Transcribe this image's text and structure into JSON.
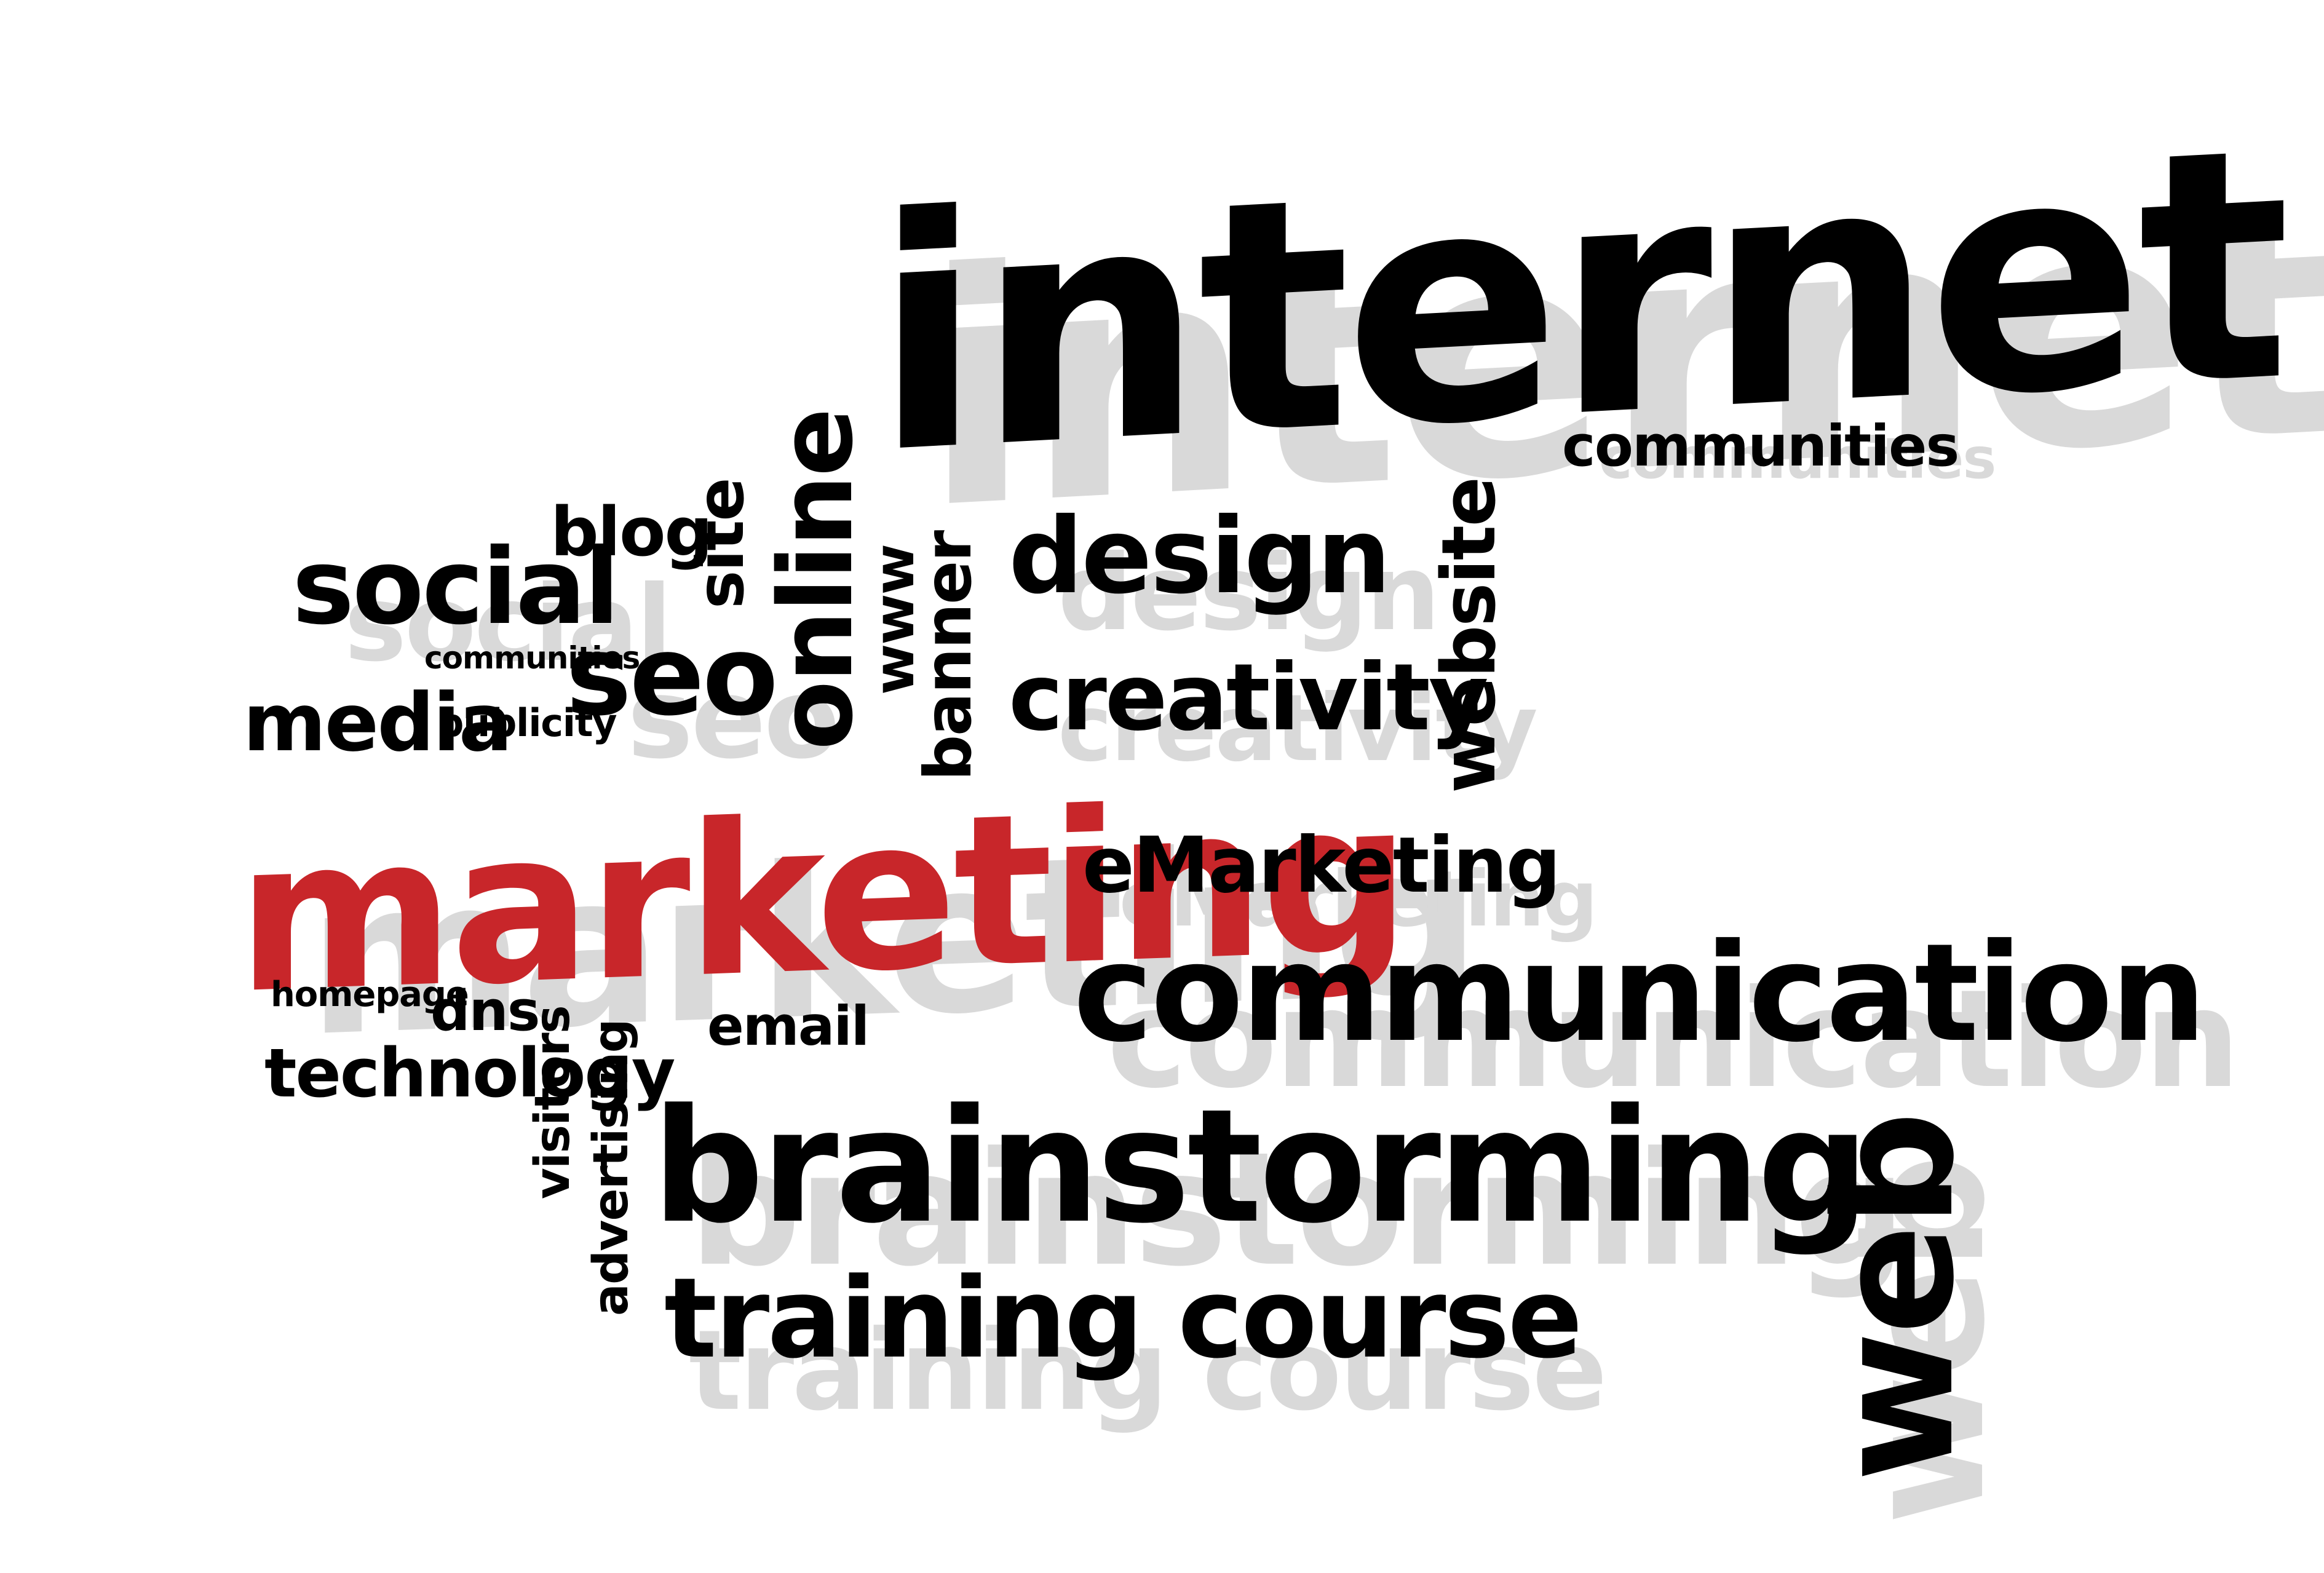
{
  "colors": {
    "background": "#ffffff",
    "ink": "#000000",
    "accent": "#c8262a",
    "shadow": "#d9d9d9"
  },
  "words": {
    "internet": "internet",
    "communities_top": "communities",
    "online": "online",
    "site": "site",
    "blog": "blog",
    "social": "social",
    "www": "www",
    "banner": "banner",
    "design": "design",
    "creativity": "creativity",
    "website": "website",
    "seo": "seo",
    "communities_small": "communities",
    "media": "media",
    "publicity": "publicity",
    "marketing": "marketing",
    "emarketing": "eMarketing",
    "communication": "communication",
    "homepage": "homepage",
    "dns": "dns",
    "visitors": "visitors",
    "advertising": "advertising",
    "email": "email",
    "technology": "technology",
    "brainstorming": "brainstorming",
    "training_course": "training course",
    "web": "web"
  }
}
